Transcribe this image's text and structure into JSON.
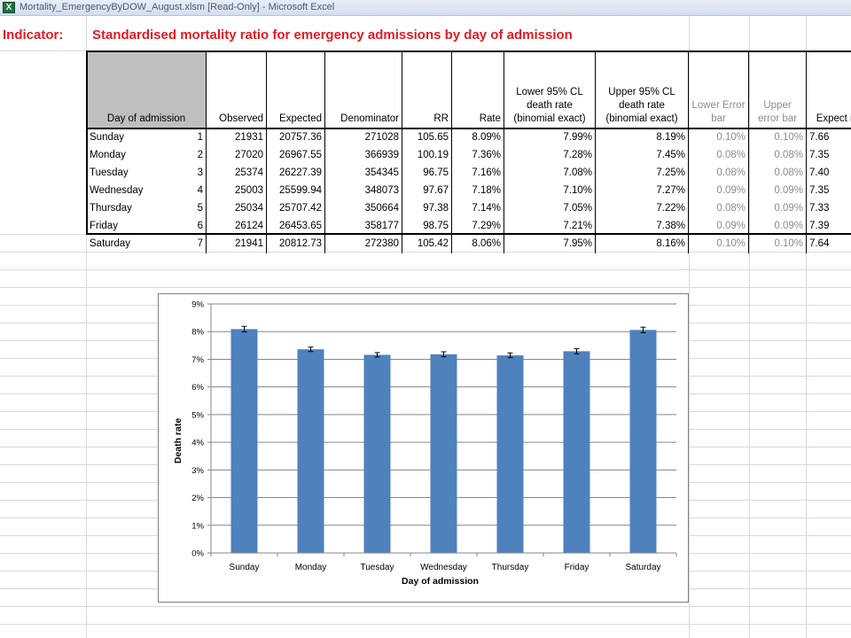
{
  "window": {
    "title": "Mortality_EmergencyByDOW_August.xlsm  [Read-Only] - Microsoft Excel",
    "icon": "excel-icon",
    "icon_letter": "X"
  },
  "sheet": {
    "indicator_label": "Indicator:",
    "indicator_title": "Standardised mortality ratio for emergency admissions by day of admission"
  },
  "colors": {
    "accent_red": "#e31b23",
    "bar_blue": "#4f81bd",
    "header_gray": "#bfbfbf"
  },
  "table": {
    "headers": {
      "day": "Day of admission",
      "observed": "Observed",
      "expected": "Expected",
      "denominator": "Denominator",
      "rr": "RR",
      "rate": "Rate",
      "lower_cl": "Lower 95% CL death rate (binomial exact)",
      "upper_cl": "Upper 95% CL death rate (binomial exact)",
      "lower_err": "Lower Error bar",
      "upper_err": "Upper error bar",
      "expected_rate": "Expect ra"
    },
    "rows": [
      {
        "day": "Sunday",
        "idx": "1",
        "observed": "21931",
        "expected": "20757.36",
        "denominator": "271028",
        "rr": "105.65",
        "rate": "8.09%",
        "lower_cl": "7.99%",
        "upper_cl": "8.19%",
        "lower_err": "0.10%",
        "upper_err": "0.10%",
        "expected_rate": "7.66"
      },
      {
        "day": "Monday",
        "idx": "2",
        "observed": "27020",
        "expected": "26967.55",
        "denominator": "366939",
        "rr": "100.19",
        "rate": "7.36%",
        "lower_cl": "7.28%",
        "upper_cl": "7.45%",
        "lower_err": "0.08%",
        "upper_err": "0.08%",
        "expected_rate": "7.35"
      },
      {
        "day": "Tuesday",
        "idx": "3",
        "observed": "25374",
        "expected": "26227.39",
        "denominator": "354345",
        "rr": "96.75",
        "rate": "7.16%",
        "lower_cl": "7.08%",
        "upper_cl": "7.25%",
        "lower_err": "0.08%",
        "upper_err": "0.08%",
        "expected_rate": "7.40"
      },
      {
        "day": "Wednesday",
        "idx": "4",
        "observed": "25003",
        "expected": "25599.94",
        "denominator": "348073",
        "rr": "97.67",
        "rate": "7.18%",
        "lower_cl": "7.10%",
        "upper_cl": "7.27%",
        "lower_err": "0.09%",
        "upper_err": "0.09%",
        "expected_rate": "7.35"
      },
      {
        "day": "Thursday",
        "idx": "5",
        "observed": "25034",
        "expected": "25707.42",
        "denominator": "350664",
        "rr": "97.38",
        "rate": "7.14%",
        "lower_cl": "7.05%",
        "upper_cl": "7.22%",
        "lower_err": "0.08%",
        "upper_err": "0.09%",
        "expected_rate": "7.33"
      },
      {
        "day": "Friday",
        "idx": "6",
        "observed": "26124",
        "expected": "26453.65",
        "denominator": "358177",
        "rr": "98.75",
        "rate": "7.29%",
        "lower_cl": "7.21%",
        "upper_cl": "7.38%",
        "lower_err": "0.09%",
        "upper_err": "0.09%",
        "expected_rate": "7.39"
      },
      {
        "day": "Saturday",
        "idx": "7",
        "observed": "21941",
        "expected": "20812.73",
        "denominator": "272380",
        "rr": "105.42",
        "rate": "8.06%",
        "lower_cl": "7.95%",
        "upper_cl": "8.16%",
        "lower_err": "0.10%",
        "upper_err": "0.10%",
        "expected_rate": "7.64"
      }
    ]
  },
  "chart_data": {
    "type": "bar",
    "categories": [
      "Sunday",
      "Monday",
      "Tuesday",
      "Wednesday",
      "Thursday",
      "Friday",
      "Saturday"
    ],
    "values": [
      8.09,
      7.36,
      7.16,
      7.18,
      7.14,
      7.29,
      8.06
    ],
    "error_low": [
      0.1,
      0.08,
      0.08,
      0.09,
      0.08,
      0.09,
      0.1
    ],
    "error_high": [
      0.1,
      0.08,
      0.08,
      0.09,
      0.09,
      0.09,
      0.1
    ],
    "title": "",
    "xlabel": "Day of admission",
    "ylabel": "Death rate",
    "ylim": [
      0,
      9
    ],
    "yticks": [
      "0%",
      "1%",
      "2%",
      "3%",
      "4%",
      "5%",
      "6%",
      "7%",
      "8%",
      "9%"
    ],
    "grid": true,
    "legend": "none"
  }
}
